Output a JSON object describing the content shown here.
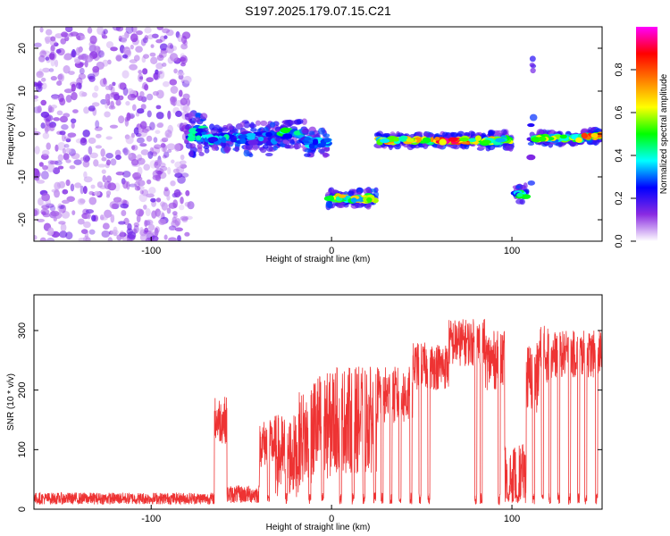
{
  "title": "S197.2025.179.07.15.C21",
  "chart_data": [
    {
      "type": "heatmap",
      "xlabel": "Height of straight line (km)",
      "ylabel": "Frequency (Hz)",
      "xlim": [
        -165,
        150
      ],
      "ylim": [
        -25,
        25
      ],
      "x_ticks": [
        -100,
        0,
        100
      ],
      "y_ticks": [
        -20,
        -10,
        0,
        10,
        20
      ],
      "colorbar": {
        "label": "Normalized spectral amplitude",
        "range": [
          0,
          1
        ],
        "ticks": [
          "0.0",
          "0.2",
          "0.4",
          "0.6",
          "0.8"
        ],
        "colors": [
          "#ffffff",
          "#8a2be2",
          "#0000ff",
          "#00ffff",
          "#00ff00",
          "#ffff00",
          "#ff8000",
          "#ff0000",
          "#ff00ff"
        ]
      },
      "noise_region": {
        "x": [
          -165,
          -78
        ],
        "y": [
          -25,
          25
        ]
      },
      "features": [
        {
          "x": [
            -80,
            -70
          ],
          "freq": 0,
          "spread": 5,
          "peak": 0.45
        },
        {
          "x": [
            -70,
            -50
          ],
          "freq": -1,
          "spread": 3,
          "peak": 0.45
        },
        {
          "x": [
            -50,
            -30
          ],
          "freq": -1,
          "spread": 4,
          "peak": 0.35
        },
        {
          "x": [
            -30,
            -15
          ],
          "freq": 0,
          "spread": 3,
          "peak": 0.5
        },
        {
          "x": [
            -15,
            -2
          ],
          "freq": -2,
          "spread": 3,
          "peak": 0.4
        },
        {
          "x": [
            -2,
            25
          ],
          "freq": -15,
          "spread": 2,
          "peak": 0.7
        },
        {
          "x": [
            25,
            58
          ],
          "freq": -1.5,
          "spread": 1.5,
          "peak": 0.75
        },
        {
          "x": [
            58,
            78
          ],
          "freq": -1.5,
          "spread": 1.5,
          "peak": 0.95
        },
        {
          "x": [
            78,
            100
          ],
          "freq": -1.5,
          "spread": 2,
          "peak": 0.7
        },
        {
          "x": [
            102,
            108
          ],
          "freq": -14,
          "spread": 2,
          "peak": 0.5
        },
        {
          "x": [
            110,
            112
          ],
          "freq": 0,
          "spread": 20,
          "peak": 0.25
        },
        {
          "x": [
            113,
            140
          ],
          "freq": -1,
          "spread": 1.5,
          "peak": 0.65
        },
        {
          "x": [
            140,
            150
          ],
          "freq": -0.5,
          "spread": 1.5,
          "peak": 0.95
        }
      ]
    },
    {
      "type": "line",
      "xlabel": "Height of straight line (km)",
      "ylabel": "SNR (10 * v/v)",
      "xlim": [
        -165,
        150
      ],
      "ylim": [
        0,
        360
      ],
      "x_ticks": [
        -100,
        0,
        100
      ],
      "y_ticks": [
        0,
        100,
        200,
        300
      ],
      "color": "#ee3333",
      "segments": [
        {
          "x0": -165,
          "x1": -65,
          "base": 18,
          "noise": 10
        },
        {
          "x0": -65,
          "x1": -58,
          "base": 150,
          "noise": 40
        },
        {
          "x0": -58,
          "x1": -40,
          "base": 25,
          "noise": 15
        },
        {
          "x0": -40,
          "x1": -32,
          "base": 110,
          "noise": 40
        },
        {
          "x0": -32,
          "x1": -18,
          "base": 90,
          "noise": 70
        },
        {
          "x0": -18,
          "x1": -10,
          "base": 120,
          "noise": 80
        },
        {
          "x0": -10,
          "x1": 0,
          "base": 140,
          "noise": 90
        },
        {
          "x0": 0,
          "x1": 25,
          "base": 150,
          "noise": 90
        },
        {
          "x0": 25,
          "x1": 45,
          "base": 190,
          "noise": 50
        },
        {
          "x0": 45,
          "x1": 65,
          "base": 240,
          "noise": 40
        },
        {
          "x0": 65,
          "x1": 85,
          "base": 280,
          "noise": 40
        },
        {
          "x0": 85,
          "x1": 96,
          "base": 250,
          "noise": 50
        },
        {
          "x0": 96,
          "x1": 108,
          "base": 60,
          "noise": 50
        },
        {
          "x0": 108,
          "x1": 115,
          "base": 220,
          "noise": 60
        },
        {
          "x0": 115,
          "x1": 122,
          "base": 260,
          "noise": 50
        },
        {
          "x0": 122,
          "x1": 150,
          "base": 260,
          "noise": 40
        }
      ],
      "dropout_xs": [
        -35,
        -25,
        -12,
        -5,
        5,
        12,
        18,
        24,
        28,
        33,
        38,
        44,
        49,
        54,
        80,
        83,
        93,
        98,
        103,
        112,
        117,
        121,
        126,
        132,
        137,
        141,
        147
      ]
    }
  ]
}
